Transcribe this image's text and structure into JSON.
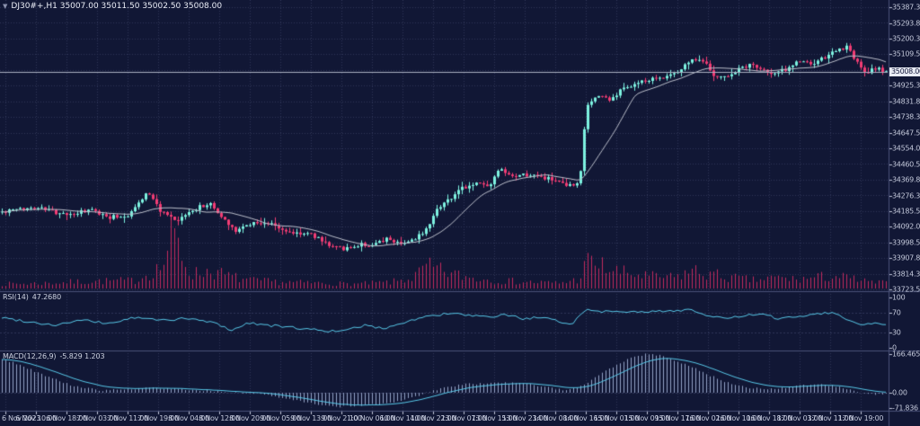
{
  "header": {
    "marker_icon": "▼",
    "title_text": "DJ30#+,H1 35007.00 35011.50 35002.50 35008.00"
  },
  "chart_data": {
    "type": "candlestick",
    "symbol": "DJ30#+",
    "timeframe": "H1",
    "ohlc": {
      "open": "35007.00",
      "high": "35011.50",
      "low": "35002.50",
      "close": "35008.00"
    },
    "current_price": "35008.00",
    "current_price_value": 35008.0,
    "price_axis": {
      "labels": [
        "35387.30",
        "35293.80",
        "35200.30",
        "35109.55",
        "34925.30",
        "34831.80",
        "34738.30",
        "34647.55",
        "34554.05",
        "34460.55",
        "34369.80",
        "34276.30",
        "34185.55",
        "34092.05",
        "33998.55",
        "33907.80",
        "33814.30",
        "33723.55"
      ],
      "top_value": 35387.3,
      "bottom_value": 33723.55,
      "grid_slots": 19,
      "hidden_slot": 4
    },
    "time_axis": {
      "labels": [
        "6 Nov 2023",
        "6 Nov 10:00",
        "6 Nov 18:00",
        "7 Nov 03:00",
        "7 Nov 11:00",
        "7 Nov 19:00",
        "8 Nov 04:00",
        "8 Nov 12:00",
        "8 Nov 20:00",
        "9 Nov 05:00",
        "9 Nov 13:00",
        "9 Nov 21:00",
        "10 Nov 06:00",
        "10 Nov 14:00",
        "10 Nov 22:00",
        "13 Nov 07:00",
        "13 Nov 15:00",
        "13 Nov 23:00",
        "14 Nov 08:00",
        "14 Nov 16:00",
        "15 Nov 01:00",
        "15 Nov 09:00",
        "15 Nov 17:00",
        "16 Nov 02:00",
        "16 Nov 10:00",
        "16 Nov 18:00",
        "17 Nov 03:00",
        "17 Nov 11:00",
        "17 Nov 19:00"
      ]
    },
    "series": {
      "candle_count": 247,
      "close_path": [
        [
          0.0,
          34180
        ],
        [
          0.04,
          34210
        ],
        [
          0.071,
          34160
        ],
        [
          0.101,
          34190
        ],
        [
          0.121,
          34150
        ],
        [
          0.142,
          34160
        ],
        [
          0.165,
          34300
        ],
        [
          0.18,
          34180
        ],
        [
          0.197,
          34120
        ],
        [
          0.218,
          34200
        ],
        [
          0.235,
          34230
        ],
        [
          0.248,
          34150
        ],
        [
          0.265,
          34070
        ],
        [
          0.283,
          34120
        ],
        [
          0.304,
          34110
        ],
        [
          0.324,
          34060
        ],
        [
          0.349,
          34050
        ],
        [
          0.369,
          33990
        ],
        [
          0.39,
          33960
        ],
        [
          0.405,
          33990
        ],
        [
          0.42,
          33980
        ],
        [
          0.435,
          34020
        ],
        [
          0.45,
          34000
        ],
        [
          0.466,
          34010
        ],
        [
          0.481,
          34090
        ],
        [
          0.491,
          34200
        ],
        [
          0.506,
          34260
        ],
        [
          0.521,
          34320
        ],
        [
          0.536,
          34350
        ],
        [
          0.552,
          34330
        ],
        [
          0.562,
          34430
        ],
        [
          0.577,
          34380
        ],
        [
          0.592,
          34400
        ],
        [
          0.607,
          34390
        ],
        [
          0.622,
          34370
        ],
        [
          0.638,
          34330
        ],
        [
          0.653,
          34340
        ],
        [
          0.661,
          34800
        ],
        [
          0.673,
          34870
        ],
        [
          0.688,
          34840
        ],
        [
          0.703,
          34910
        ],
        [
          0.719,
          34940
        ],
        [
          0.734,
          34960
        ],
        [
          0.749,
          34980
        ],
        [
          0.764,
          35010
        ],
        [
          0.779,
          35080
        ],
        [
          0.791,
          35090
        ],
        [
          0.802,
          35000
        ],
        [
          0.815,
          34970
        ],
        [
          0.83,
          35010
        ],
        [
          0.845,
          35050
        ],
        [
          0.858,
          35030
        ],
        [
          0.87,
          34990
        ],
        [
          0.886,
          35020
        ],
        [
          0.901,
          35070
        ],
        [
          0.916,
          35050
        ],
        [
          0.931,
          35090
        ],
        [
          0.946,
          35140
        ],
        [
          0.956,
          35150
        ],
        [
          0.967,
          35060
        ],
        [
          0.977,
          34990
        ],
        [
          0.987,
          35030
        ],
        [
          1.0,
          35008
        ]
      ],
      "volume_profile": [
        [
          0.0,
          5
        ],
        [
          0.05,
          6
        ],
        [
          0.1,
          8
        ],
        [
          0.15,
          9
        ],
        [
          0.182,
          25
        ],
        [
          0.192,
          62
        ],
        [
          0.199,
          48
        ],
        [
          0.206,
          30
        ],
        [
          0.215,
          16
        ],
        [
          0.235,
          20
        ],
        [
          0.255,
          14
        ],
        [
          0.28,
          9
        ],
        [
          0.32,
          7
        ],
        [
          0.36,
          6
        ],
        [
          0.4,
          5
        ],
        [
          0.44,
          7
        ],
        [
          0.465,
          12
        ],
        [
          0.48,
          24
        ],
        [
          0.495,
          20
        ],
        [
          0.51,
          16
        ],
        [
          0.53,
          12
        ],
        [
          0.56,
          9
        ],
        [
          0.6,
          7
        ],
        [
          0.63,
          6
        ],
        [
          0.652,
          10
        ],
        [
          0.662,
          30
        ],
        [
          0.675,
          26
        ],
        [
          0.69,
          20
        ],
        [
          0.71,
          16
        ],
        [
          0.735,
          13
        ],
        [
          0.76,
          12
        ],
        [
          0.78,
          20
        ],
        [
          0.8,
          16
        ],
        [
          0.825,
          12
        ],
        [
          0.85,
          9
        ],
        [
          0.875,
          12
        ],
        [
          0.9,
          10
        ],
        [
          0.92,
          12
        ],
        [
          0.94,
          14
        ],
        [
          0.96,
          11
        ],
        [
          0.98,
          7
        ],
        [
          1.0,
          6
        ]
      ]
    },
    "indicators": {
      "rsi": {
        "label": "RSI(14)",
        "value": "47.2680",
        "axis_labels": [
          100,
          70,
          30,
          0
        ],
        "levels": [
          70,
          30
        ],
        "path": [
          [
            0.0,
            60
          ],
          [
            0.03,
            52
          ],
          [
            0.06,
            45
          ],
          [
            0.09,
            55
          ],
          [
            0.12,
            48
          ],
          [
            0.15,
            60
          ],
          [
            0.18,
            55
          ],
          [
            0.21,
            58
          ],
          [
            0.24,
            50
          ],
          [
            0.26,
            35
          ],
          [
            0.28,
            50
          ],
          [
            0.3,
            45
          ],
          [
            0.33,
            40
          ],
          [
            0.36,
            35
          ],
          [
            0.385,
            32
          ],
          [
            0.41,
            45
          ],
          [
            0.43,
            38
          ],
          [
            0.45,
            48
          ],
          [
            0.47,
            58
          ],
          [
            0.49,
            65
          ],
          [
            0.51,
            68
          ],
          [
            0.53,
            64
          ],
          [
            0.55,
            60
          ],
          [
            0.57,
            66
          ],
          [
            0.59,
            58
          ],
          [
            0.61,
            60
          ],
          [
            0.63,
            52
          ],
          [
            0.645,
            48
          ],
          [
            0.66,
            76
          ],
          [
            0.68,
            72
          ],
          [
            0.7,
            74
          ],
          [
            0.72,
            70
          ],
          [
            0.74,
            72
          ],
          [
            0.76,
            74
          ],
          [
            0.78,
            76
          ],
          [
            0.8,
            62
          ],
          [
            0.82,
            58
          ],
          [
            0.84,
            64
          ],
          [
            0.86,
            66
          ],
          [
            0.88,
            58
          ],
          [
            0.9,
            62
          ],
          [
            0.92,
            68
          ],
          [
            0.94,
            70
          ],
          [
            0.955,
            58
          ],
          [
            0.97,
            45
          ],
          [
            0.985,
            50
          ],
          [
            1.0,
            47.3
          ]
        ]
      },
      "macd": {
        "label": "MACD(12,26,9)",
        "values_text": "-5.829 1.203",
        "main_value": -5.829,
        "signal_value": 1.203,
        "axis_labels": [
          "166.465",
          "0.00",
          "-71.836"
        ],
        "axis_values": [
          166.465,
          0.0,
          -71.836
        ],
        "path": [
          [
            0.0,
            145
          ],
          [
            0.02,
            120
          ],
          [
            0.05,
            70
          ],
          [
            0.08,
            30
          ],
          [
            0.11,
            10
          ],
          [
            0.14,
            15
          ],
          [
            0.17,
            20
          ],
          [
            0.2,
            15
          ],
          [
            0.23,
            10
          ],
          [
            0.26,
            0
          ],
          [
            0.29,
            -5
          ],
          [
            0.32,
            -25
          ],
          [
            0.35,
            -45
          ],
          [
            0.38,
            -60
          ],
          [
            0.4,
            -55
          ],
          [
            0.42,
            -50
          ],
          [
            0.44,
            -45
          ],
          [
            0.46,
            -25
          ],
          [
            0.48,
            0
          ],
          [
            0.5,
            20
          ],
          [
            0.52,
            35
          ],
          [
            0.54,
            40
          ],
          [
            0.56,
            45
          ],
          [
            0.58,
            40
          ],
          [
            0.6,
            35
          ],
          [
            0.62,
            20
          ],
          [
            0.64,
            10
          ],
          [
            0.66,
            40
          ],
          [
            0.68,
            90
          ],
          [
            0.7,
            130
          ],
          [
            0.715,
            155
          ],
          [
            0.73,
            166
          ],
          [
            0.745,
            160
          ],
          [
            0.76,
            140
          ],
          [
            0.78,
            110
          ],
          [
            0.8,
            75
          ],
          [
            0.82,
            45
          ],
          [
            0.84,
            25
          ],
          [
            0.86,
            15
          ],
          [
            0.88,
            20
          ],
          [
            0.9,
            30
          ],
          [
            0.92,
            35
          ],
          [
            0.94,
            30
          ],
          [
            0.955,
            15
          ],
          [
            0.97,
            0
          ],
          [
            0.985,
            -8
          ],
          [
            1.0,
            -5.8
          ]
        ]
      }
    },
    "colors": {
      "background": "#111735",
      "grid": "#2e3558",
      "bull": "#7df2e0",
      "bear": "#f23c74",
      "ma_line": "#b9bdc9",
      "volume": "#c22a5e",
      "rsi_line": "#57c8e8",
      "macd_histogram": "#93a2c6",
      "macd_signal": "#57c8e8",
      "separator": "#4a5178",
      "axis_text": "#c3c8da",
      "price_line": "#aab0c2",
      "price_tag_bg": "#e8ebf4",
      "price_tag_text": "#13183a"
    }
  }
}
